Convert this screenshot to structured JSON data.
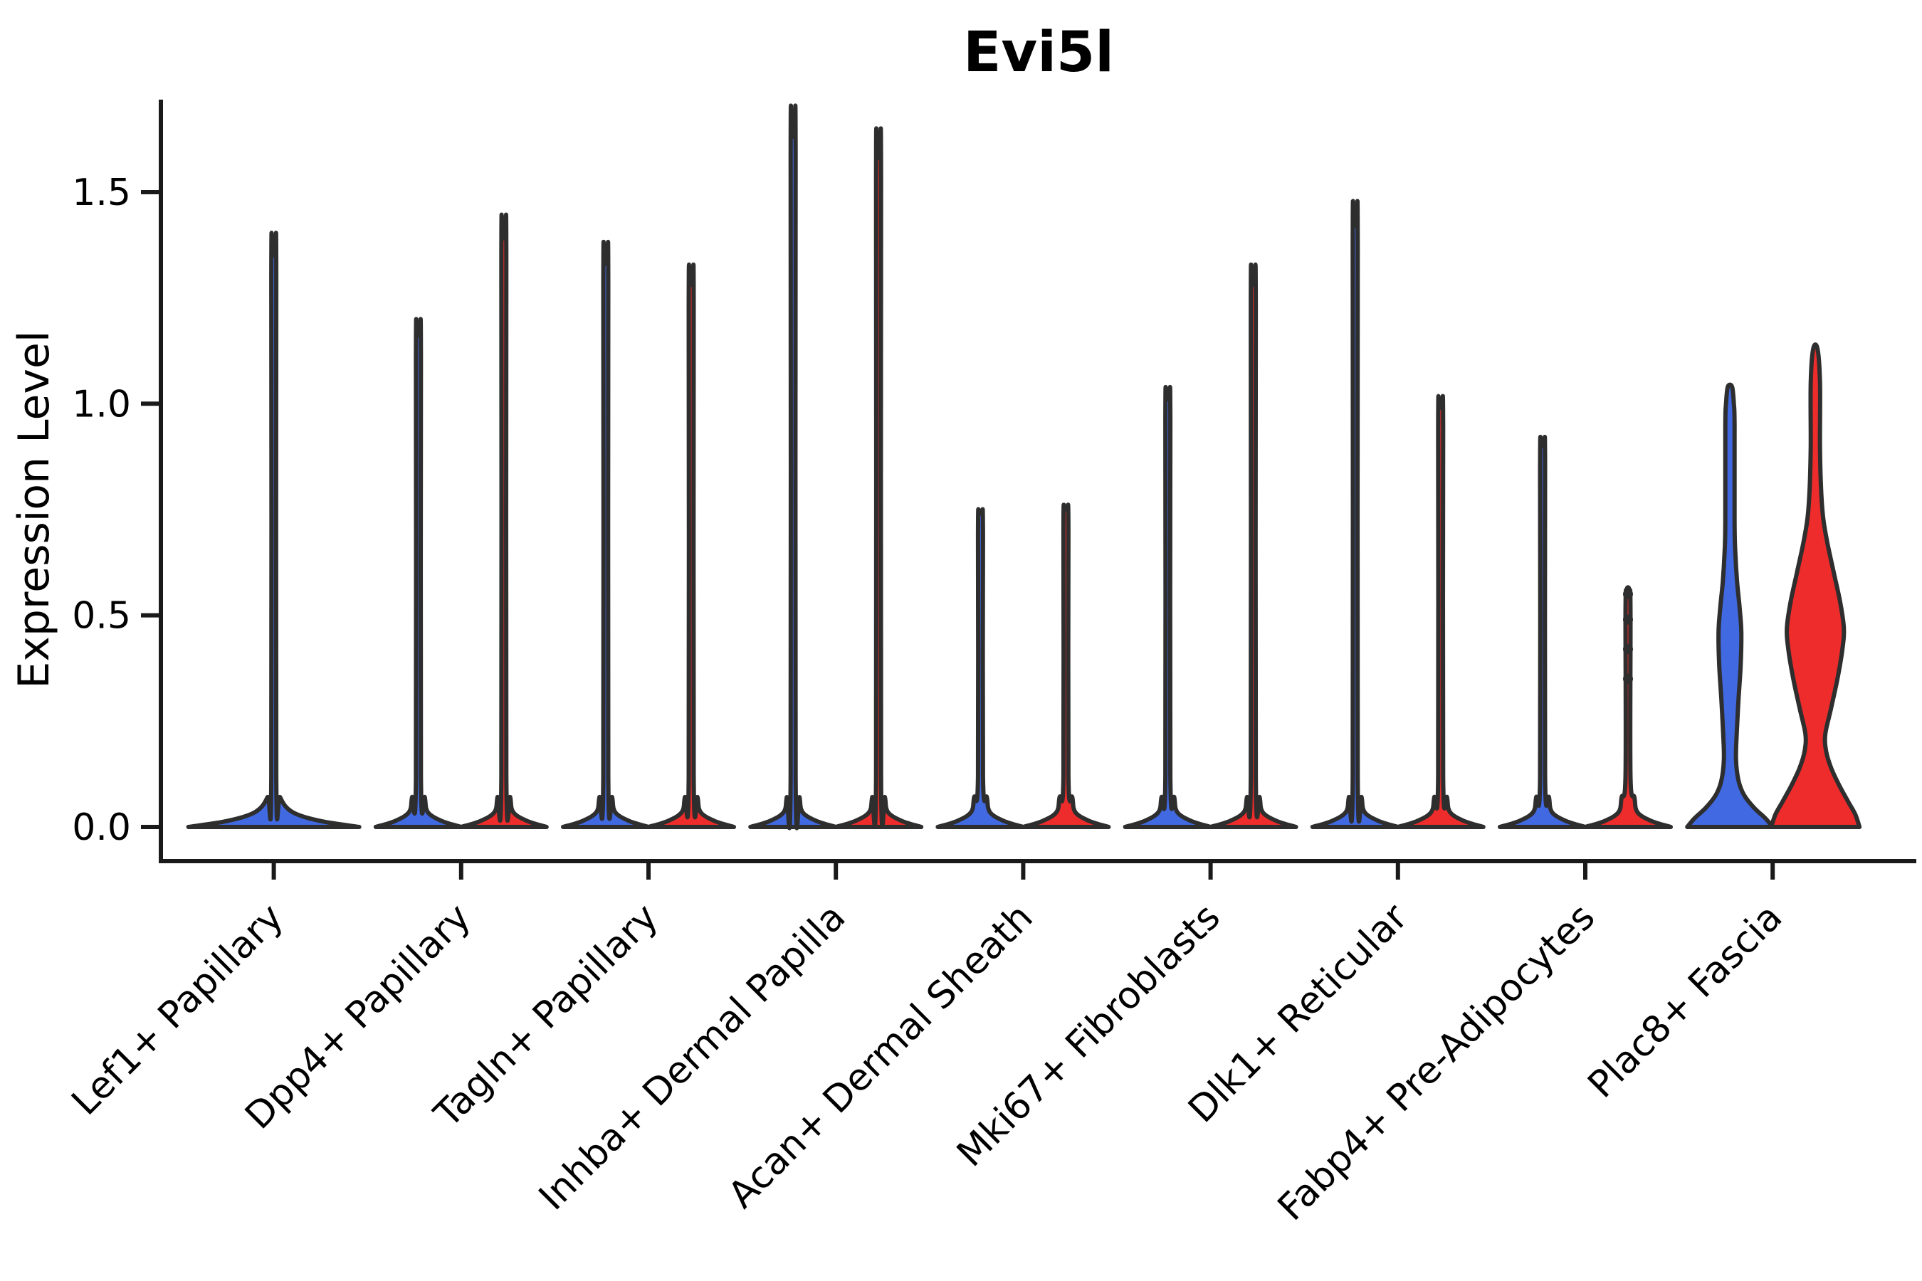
{
  "title": "Evi5l",
  "y_axis": {
    "label": "Expression Level",
    "tick_labels": [
      "0.0",
      "0.5",
      "1.0",
      "1.5"
    ]
  },
  "chart_data": {
    "type": "violin",
    "title": "Evi5l",
    "xlabel": "",
    "ylabel": "Expression Level",
    "ylim": [
      -0.05,
      1.72
    ],
    "yticks": [
      0.0,
      0.5,
      1.0,
      1.5
    ],
    "grid": false,
    "legend": "none",
    "outline_color": "#2E2E2E",
    "axis_color": "#1a1a1a",
    "background_color": "#ffffff",
    "categories": [
      "Lef1+ Papillary",
      "Dpp4+ Papillary",
      "Tagln+ Papillary",
      "Inhba+ Dermal Papilla",
      "Acan+ Dermal Sheath",
      "Mki67+ Fibroblasts",
      "Dlk1+ Reticular",
      "Fabp4+ Pre-Adipocytes",
      "Plac8+ Fascia"
    ],
    "groups": [
      {
        "name": "group-1",
        "color": "#4169E1"
      },
      {
        "name": "group-2",
        "color": "#EE2C2C"
      }
    ],
    "violins": [
      {
        "category_index": 0,
        "category": "Lef1+ Papillary",
        "side": "full",
        "fill": "#4169E1",
        "max_expression": 1.35,
        "shape": "spike"
      },
      {
        "category_index": 1,
        "category": "Dpp4+ Papillary",
        "side": "left",
        "fill": "#4169E1",
        "max_expression": 1.16,
        "shape": "spike"
      },
      {
        "category_index": 1,
        "category": "Dpp4+ Papillary",
        "side": "right",
        "fill": "#EE2C2C",
        "max_expression": 1.39,
        "shape": "spike"
      },
      {
        "category_index": 2,
        "category": "Tagln+ Papillary",
        "side": "left",
        "fill": "#4169E1",
        "max_expression": 1.33,
        "shape": "spike"
      },
      {
        "category_index": 2,
        "category": "Tagln+ Papillary",
        "side": "right",
        "fill": "#EE2C2C",
        "max_expression": 1.28,
        "shape": "spike"
      },
      {
        "category_index": 3,
        "category": "Inhba+ Dermal Papilla",
        "side": "left",
        "fill": "#4169E1",
        "max_expression": 1.63,
        "shape": "spike"
      },
      {
        "category_index": 3,
        "category": "Inhba+ Dermal Papilla",
        "side": "right",
        "fill": "#EE2C2C",
        "max_expression": 1.58,
        "shape": "spike"
      },
      {
        "category_index": 4,
        "category": "Acan+ Dermal Sheath",
        "side": "left",
        "fill": "#4169E1",
        "max_expression": 0.74,
        "shape": "spike"
      },
      {
        "category_index": 4,
        "category": "Acan+ Dermal Sheath",
        "side": "right",
        "fill": "#EE2C2C",
        "max_expression": 0.75,
        "shape": "spike"
      },
      {
        "category_index": 5,
        "category": "Mki67+ Fibroblasts",
        "side": "left",
        "fill": "#4169E1",
        "max_expression": 1.01,
        "shape": "spike"
      },
      {
        "category_index": 5,
        "category": "Mki67+ Fibroblasts",
        "side": "right",
        "fill": "#EE2C2C",
        "max_expression": 1.28,
        "shape": "spike"
      },
      {
        "category_index": 6,
        "category": "Dlk1+ Reticular",
        "side": "left",
        "fill": "#4169E1",
        "max_expression": 1.42,
        "shape": "spike"
      },
      {
        "category_index": 6,
        "category": "Dlk1+ Reticular",
        "side": "right",
        "fill": "#EE2C2C",
        "max_expression": 0.99,
        "shape": "spike"
      },
      {
        "category_index": 7,
        "category": "Fabp4+ Pre-Adipocytes",
        "side": "left",
        "fill": "#4169E1",
        "max_expression": 0.9,
        "shape": "spike"
      },
      {
        "category_index": 7,
        "category": "Fabp4+ Pre-Adipocytes",
        "side": "right",
        "fill": "#EE2C2C",
        "max_expression": 0.56,
        "shape": "spike",
        "jitter_dots": [
          0.55,
          0.49,
          0.42,
          0.35
        ]
      },
      {
        "category_index": 8,
        "category": "Plac8+ Fascia",
        "side": "left",
        "fill": "#4169E1",
        "max_expression": 1.04,
        "shape": "violin",
        "profile": [
          [
            0,
            60
          ],
          [
            0.02,
            50
          ],
          [
            0.045,
            34
          ],
          [
            0.075,
            20
          ],
          [
            0.11,
            12
          ],
          [
            0.16,
            8.5
          ],
          [
            0.22,
            9.5
          ],
          [
            0.3,
            12
          ],
          [
            0.38,
            15
          ],
          [
            0.46,
            16
          ],
          [
            0.52,
            13.5
          ],
          [
            0.58,
            10
          ],
          [
            0.65,
            7.5
          ],
          [
            0.72,
            6.5
          ],
          [
            0.95,
            6.5
          ],
          [
            1.0,
            5.5
          ],
          [
            1.04,
            3
          ]
        ]
      },
      {
        "category_index": 8,
        "category": "Plac8+ Fascia",
        "side": "right",
        "fill": "#EE2C2C",
        "max_expression": 1.13,
        "shape": "violin",
        "profile": [
          [
            0,
            62
          ],
          [
            0.03,
            56
          ],
          [
            0.06,
            46
          ],
          [
            0.1,
            33
          ],
          [
            0.14,
            22
          ],
          [
            0.18,
            15
          ],
          [
            0.22,
            14
          ],
          [
            0.28,
            22
          ],
          [
            0.35,
            31
          ],
          [
            0.42,
            38
          ],
          [
            0.47,
            40
          ],
          [
            0.53,
            35
          ],
          [
            0.6,
            26
          ],
          [
            0.67,
            17
          ],
          [
            0.73,
            11
          ],
          [
            0.8,
            8
          ],
          [
            0.9,
            6.5
          ],
          [
            1.05,
            6.5
          ],
          [
            1.13,
            3
          ]
        ]
      }
    ]
  }
}
